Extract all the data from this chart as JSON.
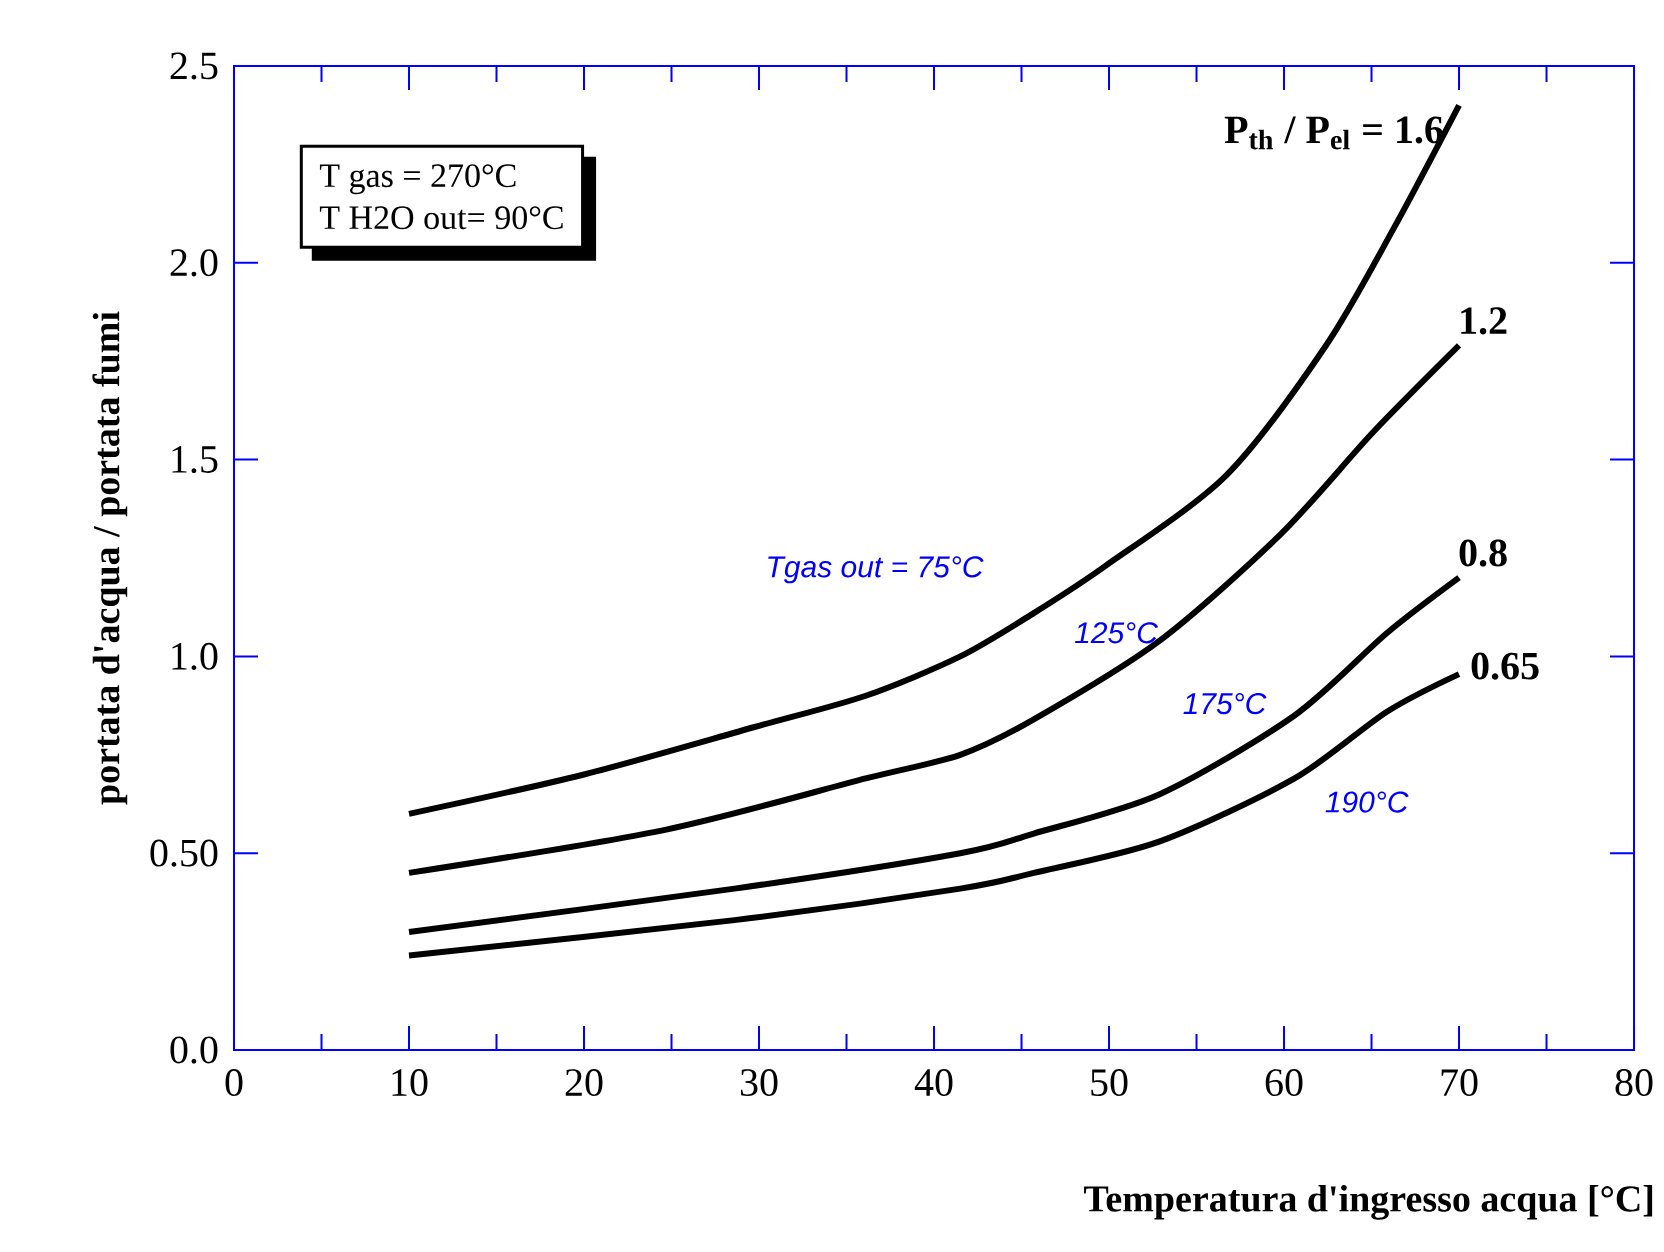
{
  "chart_data": {
    "type": "line",
    "xlabel": "Temperatura d'ingresso acqua [°C]",
    "ylabel": "portata d'acqua / portata fumi",
    "xlim": [
      0,
      80
    ],
    "xticks": [
      0,
      10,
      20,
      30,
      40,
      50,
      60,
      70,
      80
    ],
    "ylim": [
      0,
      2.5
    ],
    "yticks": [
      {
        "value": 0,
        "label": "0.0"
      },
      {
        "value": 0.5,
        "label": "0.50"
      },
      {
        "value": 1,
        "label": "1.0"
      },
      1.5,
      {
        "value": 2,
        "label": "2.0"
      },
      2.5
    ],
    "series": [
      {
        "name": "P$_{th}$ / P$_{el}$ = 1.6",
        "color": "#000000",
        "x": [
          10,
          20,
          29.7,
          36.1,
          41.5,
          45.7,
          49.8,
          56.7,
          62.4,
          66.3,
          70
        ],
        "values": [
          0.6,
          0.7,
          0.82,
          0.9,
          1.0,
          1.11,
          1.23,
          1.46,
          1.79,
          2.09,
          2.4
        ]
      },
      {
        "name": "1.2",
        "color": "#000000",
        "x": [
          10,
          24.7,
          36.1,
          41.5,
          45.7,
          52.9,
          59.8,
          65.1,
          70
        ],
        "values": [
          0.45,
          0.56,
          0.69,
          0.75,
          0.84,
          1.04,
          1.31,
          1.57,
          1.79
        ]
      },
      {
        "name": "0.8",
        "color": "#000000",
        "x": [
          10,
          28.6,
          41.5,
          45.7,
          52.9,
          60.6,
          65.9,
          70
        ],
        "values": [
          0.3,
          0.41,
          0.5,
          0.55,
          0.65,
          0.85,
          1.06,
          1.2
        ]
      },
      {
        "name": "0.65",
        "color": "#000000",
        "x": [
          10,
          28.6,
          41.5,
          45.7,
          52.9,
          60.6,
          65.9,
          70
        ],
        "values": [
          0.24,
          0.33,
          0.41,
          0.45,
          0.53,
          0.69,
          0.86,
          0.955
        ]
      }
    ],
    "annotations": [
      "T gas = 270°C",
      "T H2O out= 90°C",
      "Tgas out = 75°C",
      "125°C",
      "175°C",
      "190°C"
    ]
  }
}
